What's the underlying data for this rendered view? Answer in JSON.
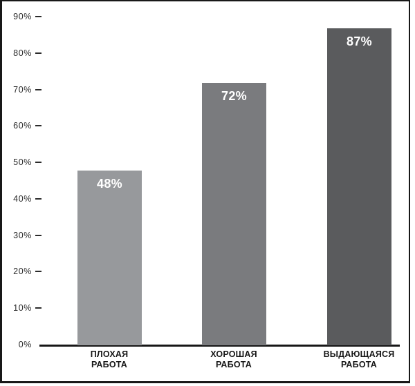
{
  "chart_data": {
    "type": "bar",
    "title": "",
    "xlabel": "",
    "ylabel": "",
    "categories": [
      "ПЛОХАЯ РАБОТА",
      "ХОРОШАЯ РАБОТА",
      "ВЫДАЮЩАЯСЯ РАБОТА"
    ],
    "category_lines": [
      [
        "ПЛОХАЯ",
        "РАБОТА"
      ],
      [
        "ХОРОШАЯ",
        "РАБОТА"
      ],
      [
        "ВЫДАЮЩАЯСЯ",
        "РАБОТА"
      ]
    ],
    "values": [
      48,
      72,
      87
    ],
    "value_labels": [
      "48%",
      "72%",
      "87%"
    ],
    "bar_colors": [
      "#97999C",
      "#7A7B7E",
      "#5A5B5D"
    ],
    "value_label_color": "#FFFFFF",
    "y_ticks": [
      "90%",
      "80%",
      "70%",
      "60%",
      "50%",
      "40%",
      "30%",
      "20%",
      "10%",
      "0%"
    ],
    "y_tick_values": [
      90,
      80,
      70,
      60,
      50,
      40,
      30,
      20,
      10,
      0
    ],
    "ylim": [
      0,
      90
    ],
    "grid": "off",
    "legend": "none",
    "frame_color": "#181818",
    "axis_color": "#161616"
  }
}
